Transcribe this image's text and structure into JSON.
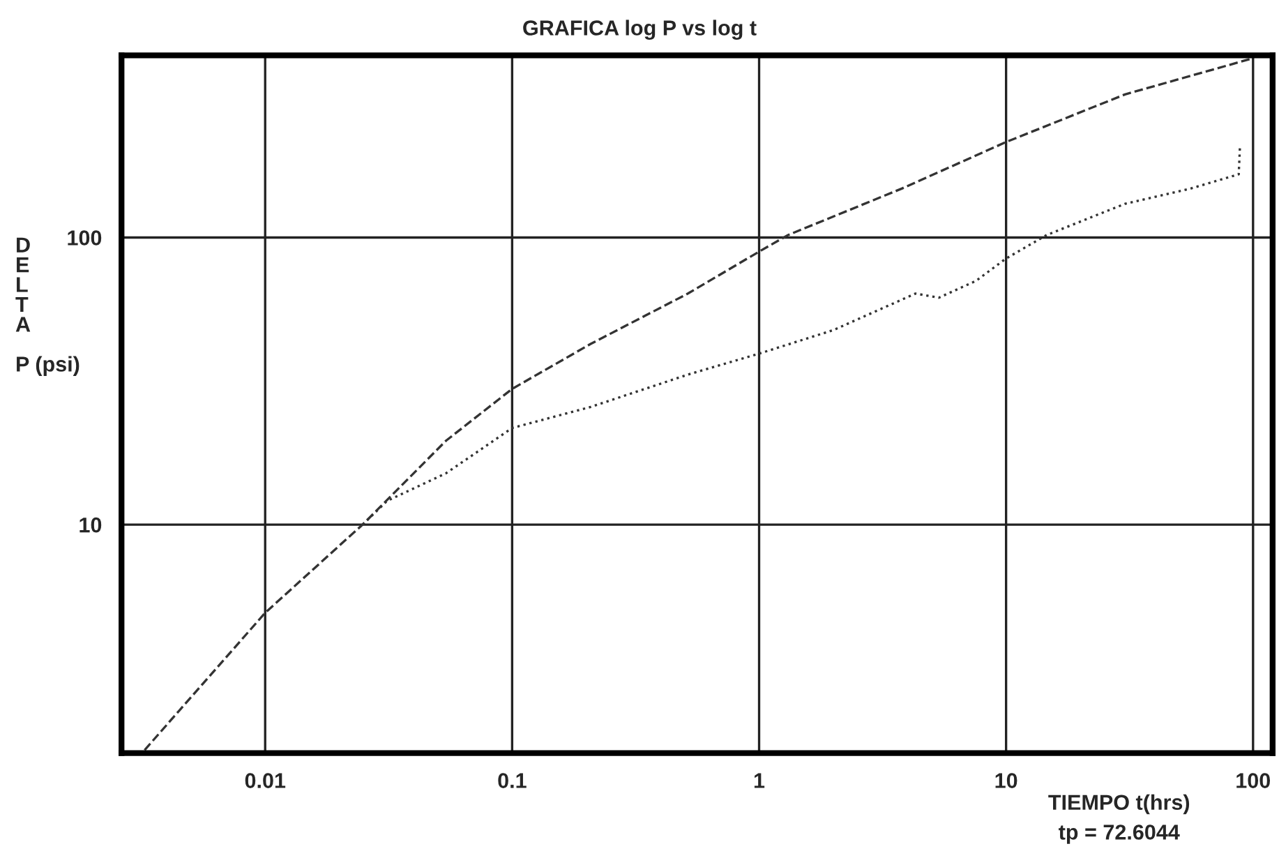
{
  "chart_data": {
    "type": "line",
    "title": "GRAFICA log P vs log t",
    "xlabel": "TIEMPO t(hrs)",
    "ylabel": "DELTA P (psi)",
    "annotations": [
      "tp = 72.6044"
    ],
    "log": "xy",
    "grid": true,
    "legend": false,
    "marker": "none",
    "xlim": [
      0.00262,
      120
    ],
    "ylim": [
      1.6,
      431
    ],
    "xticks": [
      0.01,
      0.1,
      1,
      10,
      100
    ],
    "yticks": [
      10,
      100
    ],
    "series": [
      {
        "color": "#333333",
        "line_style": "dashed",
        "x": [
          0.00325,
          0.01,
          0.0248,
          0.054,
          0.1,
          0.208,
          0.515,
          1.0,
          1.31,
          3.78,
          10,
          30.3,
          98.9
        ],
        "values": [
          1.64,
          4.93,
          10,
          19.6,
          29.7,
          42.6,
          63.8,
          89.3,
          102,
          148,
          215,
          315,
          420
        ]
      },
      {
        "color": "#333333",
        "line_style": "dotted",
        "x": [
          0.0248,
          0.0312,
          0.054,
          0.1,
          0.208,
          0.515,
          1.0,
          2.0,
          4.3,
          5.34,
          7.55,
          10,
          14.6,
          30.3,
          55.7,
          87.5,
          88.5
        ],
        "values": [
          10,
          12.1,
          15.1,
          21.7,
          25.7,
          33.3,
          39.4,
          47.6,
          63.8,
          61.7,
          70.6,
          84.5,
          102,
          131,
          148,
          166,
          207
        ]
      }
    ]
  }
}
